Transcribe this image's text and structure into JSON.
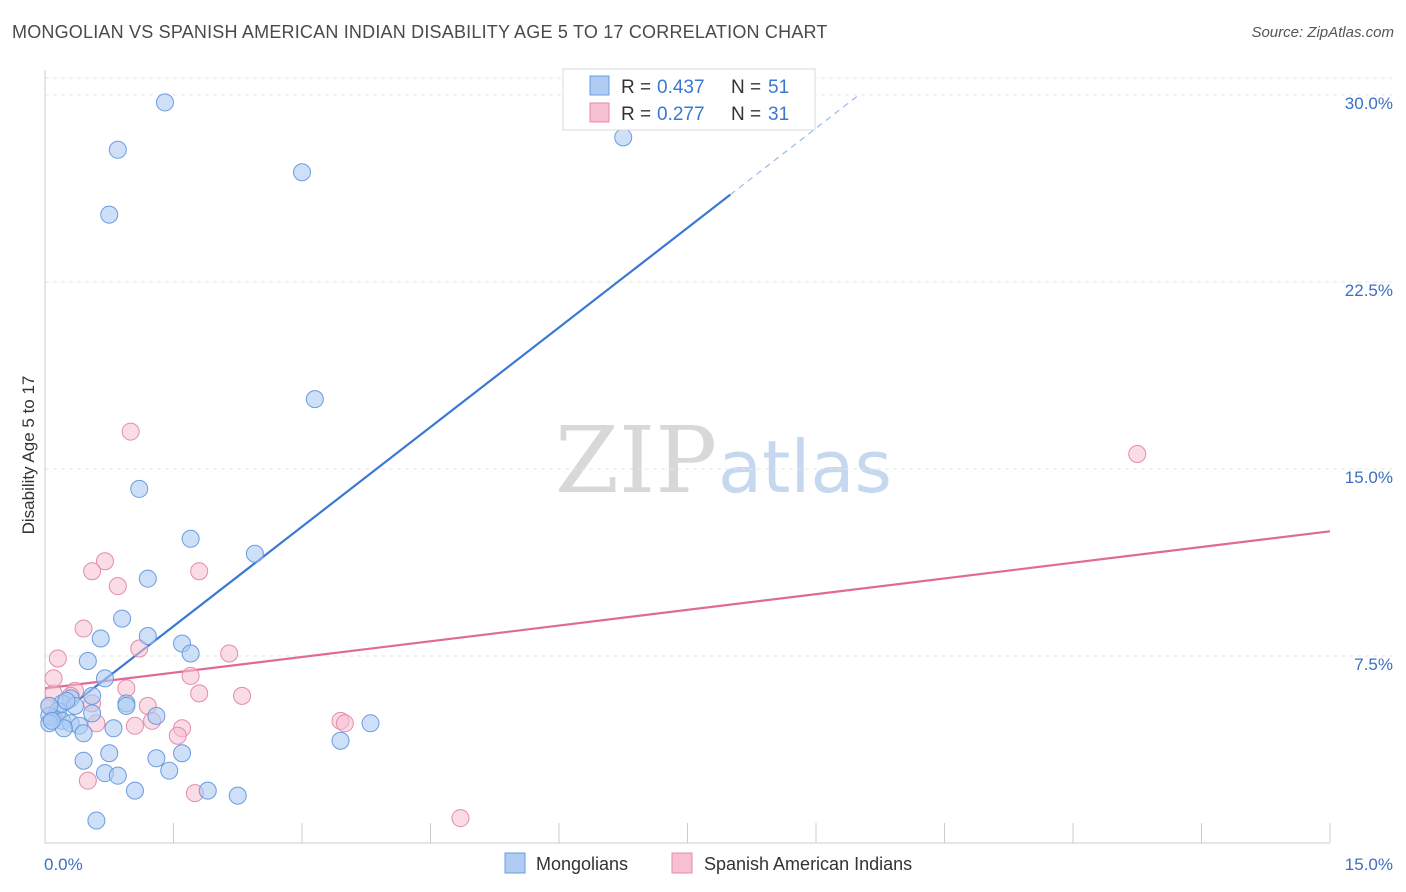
{
  "title": "MONGOLIAN VS SPANISH AMERICAN INDIAN DISABILITY AGE 5 TO 17 CORRELATION CHART",
  "source": "Source: ZipAtlas.com",
  "watermark": {
    "zip": "ZIP",
    "atlas": "atlas"
  },
  "colors": {
    "blue": "#3a78d4",
    "blue_fill": "#aecbf2",
    "pink": "#e06a96",
    "pink_fill": "#f6bfd2",
    "tick_text": "#3a6fc4"
  },
  "chart_data": {
    "type": "scatter",
    "title": "MONGOLIAN VS SPANISH AMERICAN INDIAN DISABILITY AGE 5 TO 17 CORRELATION CHART",
    "xlabel": "",
    "ylabel": "Disability Age 5 to 17",
    "xlim": [
      0,
      15
    ],
    "ylim": [
      0,
      31
    ],
    "x_ticks": [
      "0.0%",
      "15.0%"
    ],
    "y_ticks": [
      {
        "value": 7.5,
        "label": "7.5%"
      },
      {
        "value": 15.0,
        "label": "15.0%"
      },
      {
        "value": 22.5,
        "label": "22.5%"
      },
      {
        "value": 30.0,
        "label": "30.0%"
      }
    ],
    "legend": [
      {
        "name": "Mongolians",
        "r_label": "R =",
        "r_value": "0.437",
        "n_label": "N =",
        "n_value": "51"
      },
      {
        "name": "Spanish American Indians",
        "r_label": "R =",
        "r_value": "0.277",
        "n_label": "N =",
        "n_value": "31"
      }
    ],
    "series": [
      {
        "name": "Mongolians",
        "trend": {
          "x0": 0.0,
          "y0": 4.7,
          "x1": 8.0,
          "y1": 26.0,
          "dash_x1": 9.5,
          "dash_y1": 30.0
        },
        "points": [
          [
            1.4,
            29.7
          ],
          [
            0.85,
            27.8
          ],
          [
            3.0,
            26.9
          ],
          [
            0.75,
            25.2
          ],
          [
            6.75,
            28.3
          ],
          [
            3.15,
            17.8
          ],
          [
            1.1,
            14.2
          ],
          [
            1.7,
            12.2
          ],
          [
            2.45,
            11.6
          ],
          [
            1.2,
            10.6
          ],
          [
            0.9,
            9.0
          ],
          [
            1.2,
            8.3
          ],
          [
            0.65,
            8.2
          ],
          [
            1.6,
            8.0
          ],
          [
            1.7,
            7.6
          ],
          [
            0.5,
            7.3
          ],
          [
            0.7,
            6.6
          ],
          [
            0.55,
            5.9
          ],
          [
            0.3,
            5.8
          ],
          [
            0.2,
            5.6
          ],
          [
            0.35,
            5.5
          ],
          [
            0.95,
            5.6
          ],
          [
            0.55,
            5.2
          ],
          [
            0.15,
            5.3
          ],
          [
            0.1,
            5.0
          ],
          [
            0.2,
            4.9
          ],
          [
            0.3,
            4.8
          ],
          [
            0.4,
            4.7
          ],
          [
            0.22,
            4.6
          ],
          [
            0.45,
            4.4
          ],
          [
            0.8,
            4.6
          ],
          [
            1.3,
            5.1
          ],
          [
            0.05,
            5.1
          ],
          [
            0.05,
            4.8
          ],
          [
            3.8,
            4.8
          ],
          [
            3.45,
            4.1
          ],
          [
            0.75,
            3.6
          ],
          [
            1.6,
            3.6
          ],
          [
            1.3,
            3.4
          ],
          [
            0.45,
            3.3
          ],
          [
            1.45,
            2.9
          ],
          [
            0.7,
            2.8
          ],
          [
            0.85,
            2.7
          ],
          [
            1.05,
            2.1
          ],
          [
            1.9,
            2.1
          ],
          [
            2.25,
            1.9
          ],
          [
            0.6,
            0.9
          ],
          [
            0.95,
            5.5
          ],
          [
            0.25,
            5.7
          ],
          [
            0.05,
            5.5
          ],
          [
            0.08,
            4.9
          ]
        ]
      },
      {
        "name": "Spanish American Indians",
        "trend": {
          "x0": 0.0,
          "y0": 6.2,
          "x1": 15.0,
          "y1": 12.5
        },
        "points": [
          [
            1.0,
            16.5
          ],
          [
            12.75,
            15.6
          ],
          [
            0.7,
            11.3
          ],
          [
            0.55,
            10.9
          ],
          [
            1.8,
            10.9
          ],
          [
            0.85,
            10.3
          ],
          [
            0.45,
            8.6
          ],
          [
            1.1,
            7.8
          ],
          [
            2.15,
            7.6
          ],
          [
            0.15,
            7.4
          ],
          [
            1.7,
            6.7
          ],
          [
            0.95,
            6.2
          ],
          [
            0.35,
            6.1
          ],
          [
            0.1,
            6.0
          ],
          [
            0.3,
            5.9
          ],
          [
            1.8,
            6.0
          ],
          [
            2.3,
            5.9
          ],
          [
            0.55,
            5.6
          ],
          [
            0.05,
            5.5
          ],
          [
            1.2,
            5.5
          ],
          [
            1.25,
            4.9
          ],
          [
            1.6,
            4.6
          ],
          [
            3.45,
            4.9
          ],
          [
            3.5,
            4.8
          ],
          [
            0.6,
            4.8
          ],
          [
            1.05,
            4.7
          ],
          [
            1.55,
            4.3
          ],
          [
            0.5,
            2.5
          ],
          [
            1.75,
            2.0
          ],
          [
            4.85,
            1.0
          ],
          [
            0.1,
            6.6
          ]
        ]
      }
    ],
    "legend_position": "top-center"
  }
}
